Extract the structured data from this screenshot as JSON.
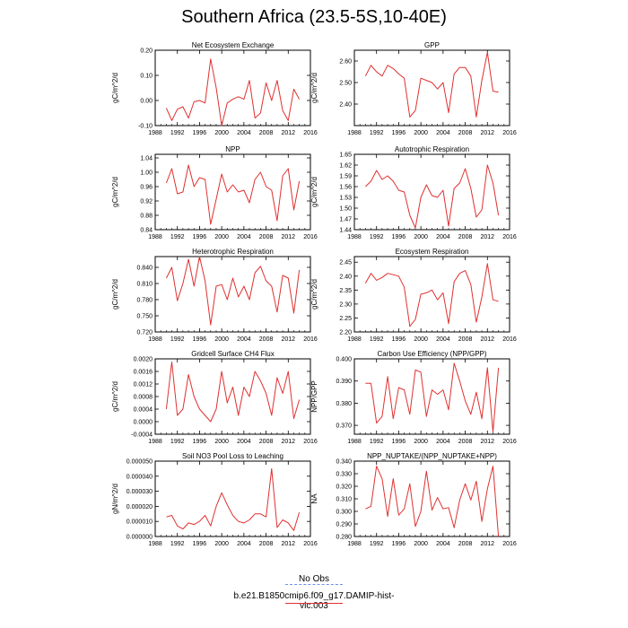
{
  "title": "Southern Africa (23.5-5S,10-40E)",
  "legend": [
    {
      "label": "No Obs",
      "color": "#6f8ff0",
      "style": "dashed"
    },
    {
      "label": "b.e21.B1850cmip6.f09_g17.DAMIP-hist-vlc.003",
      "color": "#e03030",
      "style": "solid"
    }
  ],
  "chart_data": [
    {
      "type": "line",
      "title": "Net Ecosystem Exchange",
      "ylabel": "gC/m^2/d",
      "xlim": [
        1988,
        2016
      ],
      "xticks": [
        1988,
        1992,
        1996,
        2000,
        2004,
        2008,
        2012,
        2016
      ],
      "ylim": [
        -0.1,
        0.2
      ],
      "yticks": [
        "-0.10",
        "0.00",
        "0.10",
        "0.20"
      ],
      "yticks_v": [
        -0.1,
        0,
        0.1,
        0.2
      ],
      "series": [
        {
          "color": "#e03030",
          "x": [
            1990,
            1991,
            1992,
            1993,
            1994,
            1995,
            1996,
            1997,
            1998,
            1999,
            2000,
            2001,
            2002,
            2003,
            2004,
            2005,
            2006,
            2007,
            2008,
            2009,
            2010,
            2011,
            2012,
            2013,
            2014
          ],
          "y": [
            -0.03,
            -0.08,
            -0.035,
            -0.025,
            -0.07,
            -0.005,
            0.0,
            -0.01,
            0.165,
            0.05,
            -0.1,
            -0.01,
            0.005,
            0.015,
            0.005,
            0.08,
            -0.07,
            -0.05,
            0.07,
            0.0,
            0.08,
            -0.04,
            -0.08,
            0.045,
            0.005
          ]
        }
      ]
    },
    {
      "type": "line",
      "title": "GPP",
      "ylabel": "gC/m^2/d",
      "xlim": [
        1988,
        2016
      ],
      "xticks": [
        1988,
        1992,
        1996,
        2000,
        2004,
        2008,
        2012,
        2016
      ],
      "ylim": [
        2.3,
        2.65
      ],
      "yticks": [
        "2.40",
        "2.50",
        "2.60"
      ],
      "yticks_v": [
        2.4,
        2.5,
        2.6
      ],
      "series": [
        {
          "color": "#e03030",
          "x": [
            1990,
            1991,
            1992,
            1993,
            1994,
            1995,
            1996,
            1997,
            1998,
            1999,
            2000,
            2001,
            2002,
            2003,
            2004,
            2005,
            2006,
            2007,
            2008,
            2009,
            2010,
            2011,
            2012,
            2013,
            2014
          ],
          "y": [
            2.53,
            2.58,
            2.55,
            2.53,
            2.58,
            2.565,
            2.54,
            2.52,
            2.34,
            2.37,
            2.52,
            2.51,
            2.5,
            2.47,
            2.5,
            2.36,
            2.54,
            2.57,
            2.57,
            2.53,
            2.34,
            2.51,
            2.64,
            2.46,
            2.455
          ]
        }
      ]
    },
    {
      "type": "line",
      "title": "NPP",
      "ylabel": "gC/m^2/d",
      "xlim": [
        1988,
        2016
      ],
      "xticks": [
        1988,
        1992,
        1996,
        2000,
        2004,
        2008,
        2012,
        2016
      ],
      "ylim": [
        0.84,
        1.05
      ],
      "yticks": [
        "0.84",
        "0.88",
        "0.92",
        "0.96",
        "1.00",
        "1.04"
      ],
      "yticks_v": [
        0.84,
        0.88,
        0.92,
        0.96,
        1.0,
        1.04
      ],
      "series": [
        {
          "color": "#e03030",
          "x": [
            1990,
            1991,
            1992,
            1993,
            1994,
            1995,
            1996,
            1997,
            1998,
            1999,
            2000,
            2001,
            2002,
            2003,
            2004,
            2005,
            2006,
            2007,
            2008,
            2009,
            2010,
            2011,
            2012,
            2013,
            2014
          ],
          "y": [
            0.97,
            1.01,
            0.94,
            0.945,
            1.02,
            0.96,
            0.985,
            0.98,
            0.855,
            0.925,
            0.995,
            0.945,
            0.965,
            0.945,
            0.95,
            0.915,
            0.98,
            1.0,
            0.96,
            0.95,
            0.865,
            0.99,
            1.01,
            0.895,
            0.975
          ]
        }
      ]
    },
    {
      "type": "line",
      "title": "Autotrophic Respiration",
      "ylabel": "gC/m^2/d",
      "xlim": [
        1988,
        2016
      ],
      "xticks": [
        1988,
        1992,
        1996,
        2000,
        2004,
        2008,
        2012,
        2016
      ],
      "ylim": [
        1.44,
        1.65
      ],
      "yticks": [
        "1.44",
        "1.47",
        "1.50",
        "1.53",
        "1.56",
        "1.59",
        "1.62",
        "1.65"
      ],
      "yticks_v": [
        1.44,
        1.47,
        1.5,
        1.53,
        1.56,
        1.59,
        1.62,
        1.65
      ],
      "series": [
        {
          "color": "#e03030",
          "x": [
            1990,
            1991,
            1992,
            1993,
            1994,
            1995,
            1996,
            1997,
            1998,
            1999,
            2000,
            2001,
            2002,
            2003,
            2004,
            2005,
            2006,
            2007,
            2008,
            2009,
            2010,
            2011,
            2012,
            2013,
            2014
          ],
          "y": [
            1.56,
            1.575,
            1.605,
            1.58,
            1.59,
            1.575,
            1.55,
            1.545,
            1.48,
            1.445,
            1.53,
            1.565,
            1.535,
            1.53,
            1.55,
            1.45,
            1.555,
            1.57,
            1.61,
            1.555,
            1.475,
            1.495,
            1.62,
            1.57,
            1.48
          ]
        }
      ]
    },
    {
      "type": "line",
      "title": "Heterotrophic Respiration",
      "ylabel": "gC/m^2/d",
      "xlim": [
        1988,
        2016
      ],
      "xticks": [
        1988,
        1992,
        1996,
        2000,
        2004,
        2008,
        2012,
        2016
      ],
      "ylim": [
        0.72,
        0.86
      ],
      "yticks": [
        "0.720",
        "0.750",
        "0.780",
        "0.810",
        "0.840"
      ],
      "yticks_v": [
        0.72,
        0.75,
        0.78,
        0.81,
        0.84
      ],
      "series": [
        {
          "color": "#e03030",
          "x": [
            1990,
            1991,
            1992,
            1993,
            1994,
            1995,
            1996,
            1997,
            1998,
            1999,
            2000,
            2001,
            2002,
            2003,
            2004,
            2005,
            2006,
            2007,
            2008,
            2009,
            2010,
            2011,
            2012,
            2013,
            2014
          ],
          "y": [
            0.82,
            0.84,
            0.778,
            0.81,
            0.855,
            0.805,
            0.86,
            0.815,
            0.733,
            0.805,
            0.808,
            0.78,
            0.82,
            0.785,
            0.805,
            0.78,
            0.83,
            0.842,
            0.815,
            0.805,
            0.757,
            0.825,
            0.82,
            0.755,
            0.835
          ]
        }
      ]
    },
    {
      "type": "line",
      "title": "Ecosystem Respiration",
      "ylabel": "gC/m^2/d",
      "xlim": [
        1988,
        2016
      ],
      "xticks": [
        1988,
        1992,
        1996,
        2000,
        2004,
        2008,
        2012,
        2016
      ],
      "ylim": [
        2.2,
        2.47
      ],
      "yticks": [
        "2.20",
        "2.25",
        "2.30",
        "2.35",
        "2.40",
        "2.45"
      ],
      "yticks_v": [
        2.2,
        2.25,
        2.3,
        2.35,
        2.4,
        2.45
      ],
      "series": [
        {
          "color": "#e03030",
          "x": [
            1990,
            1991,
            1992,
            1993,
            1994,
            1995,
            1996,
            1997,
            1998,
            1999,
            2000,
            2001,
            2002,
            2003,
            2004,
            2005,
            2006,
            2007,
            2008,
            2009,
            2010,
            2011,
            2012,
            2013,
            2014
          ],
          "y": [
            2.375,
            2.41,
            2.385,
            2.395,
            2.41,
            2.405,
            2.4,
            2.36,
            2.22,
            2.245,
            2.335,
            2.34,
            2.35,
            2.315,
            2.34,
            2.23,
            2.38,
            2.41,
            2.42,
            2.37,
            2.235,
            2.325,
            2.445,
            2.315,
            2.31
          ]
        }
      ]
    },
    {
      "type": "line",
      "title": "Gridcell Surface CH4 Flux",
      "ylabel": "gC/m^2/d",
      "xlim": [
        1988,
        2016
      ],
      "xticks": [
        1988,
        1992,
        1996,
        2000,
        2004,
        2008,
        2012,
        2016
      ],
      "ylim": [
        -0.0004,
        0.002
      ],
      "yticks": [
        "-0.0004",
        "0.0000",
        "0.0004",
        "0.0008",
        "0.0012",
        "0.0016",
        "0.0020"
      ],
      "yticks_v": [
        -0.0004,
        0.0,
        0.0004,
        0.0008,
        0.0012,
        0.0016,
        0.002
      ],
      "series": [
        {
          "color": "#e03030",
          "x": [
            1990,
            1991,
            1992,
            1993,
            1994,
            1995,
            1996,
            1997,
            1998,
            1999,
            2000,
            2001,
            2002,
            2003,
            2004,
            2005,
            2006,
            2007,
            2008,
            2009,
            2010,
            2011,
            2012,
            2013,
            2014
          ],
          "y": [
            0.0004,
            0.0019,
            0.0002,
            0.0004,
            0.0015,
            0.0008,
            0.0004,
            0.0002,
            0.0,
            0.0004,
            0.0016,
            0.0006,
            0.0011,
            0.0002,
            0.0011,
            0.0008,
            0.0016,
            0.0013,
            0.0009,
            0.0002,
            0.0014,
            0.0009,
            0.0016,
            0.0001,
            0.0007
          ]
        }
      ]
    },
    {
      "type": "line",
      "title": "Carbon Use Efficiency (NPP/GPP)",
      "ylabel": "NPP/GPP",
      "xlim": [
        1988,
        2016
      ],
      "xticks": [
        1988,
        1992,
        1996,
        2000,
        2004,
        2008,
        2012,
        2016
      ],
      "ylim": [
        0.366,
        0.4
      ],
      "yticks": [
        "0.370",
        "0.380",
        "0.390",
        "0.400"
      ],
      "yticks_v": [
        0.37,
        0.38,
        0.39,
        0.4
      ],
      "series": [
        {
          "color": "#e03030",
          "x": [
            1990,
            1991,
            1992,
            1993,
            1994,
            1995,
            1996,
            1997,
            1998,
            1999,
            2000,
            2001,
            2002,
            2003,
            2004,
            2005,
            2006,
            2007,
            2008,
            2009,
            2010,
            2011,
            2012,
            2013,
            2014
          ],
          "y": [
            0.389,
            0.389,
            0.371,
            0.374,
            0.392,
            0.373,
            0.387,
            0.386,
            0.375,
            0.395,
            0.394,
            0.374,
            0.386,
            0.384,
            0.386,
            0.377,
            0.398,
            0.39,
            0.381,
            0.375,
            0.385,
            0.373,
            0.396,
            0.367,
            0.396
          ]
        }
      ]
    },
    {
      "type": "line",
      "title": "Soil NO3 Pool Loss to Leaching",
      "ylabel": "gN/m^2/d",
      "xlim": [
        1988,
        2016
      ],
      "xticks": [
        1988,
        1992,
        1996,
        2000,
        2004,
        2008,
        2012,
        2016
      ],
      "ylim": [
        0,
        5e-05
      ],
      "yticks": [
        "0.000000",
        "0.000010",
        "0.000020",
        "0.000030",
        "0.000040",
        "0.000050"
      ],
      "yticks_v": [
        0,
        1e-05,
        2e-05,
        3e-05,
        4e-05,
        5e-05
      ],
      "series": [
        {
          "color": "#e03030",
          "x": [
            1990,
            1991,
            1992,
            1993,
            1994,
            1995,
            1996,
            1997,
            1998,
            1999,
            2000,
            2001,
            2002,
            2003,
            2004,
            2005,
            2006,
            2007,
            2008,
            2009,
            2010,
            2011,
            2012,
            2013,
            2014
          ],
          "y": [
            1.3e-05,
            1.4e-05,
            7e-06,
            5e-06,
            9e-06,
            8e-06,
            1e-05,
            1.4e-05,
            7e-06,
            2e-05,
            2.9e-05,
            2.1e-05,
            1.4e-05,
            1e-05,
            9e-06,
            1.1e-05,
            1.5e-05,
            1.5e-05,
            1.3e-05,
            4.5e-05,
            6e-06,
            1.1e-05,
            9e-06,
            4e-06,
            1.6e-05
          ]
        }
      ]
    },
    {
      "type": "line",
      "title": "NPP_NUPTAKE/(NPP_NUPTAKE+NPP)",
      "ylabel": "NA",
      "xlim": [
        1988,
        2016
      ],
      "xticks": [
        1988,
        1992,
        1996,
        2000,
        2004,
        2008,
        2012,
        2016
      ],
      "ylim": [
        0.28,
        0.34
      ],
      "yticks": [
        "0.280",
        "0.290",
        "0.300",
        "0.310",
        "0.320",
        "0.330",
        "0.340"
      ],
      "yticks_v": [
        0.28,
        0.29,
        0.3,
        0.31,
        0.32,
        0.33,
        0.34
      ],
      "series": [
        {
          "color": "#e03030",
          "x": [
            1990,
            1991,
            1992,
            1993,
            1994,
            1995,
            1996,
            1997,
            1998,
            1999,
            2000,
            2001,
            2002,
            2003,
            2004,
            2005,
            2006,
            2007,
            2008,
            2009,
            2010,
            2011,
            2012,
            2013,
            2014
          ],
          "y": [
            0.302,
            0.304,
            0.336,
            0.326,
            0.296,
            0.326,
            0.297,
            0.302,
            0.322,
            0.288,
            0.3,
            0.332,
            0.301,
            0.311,
            0.302,
            0.303,
            0.287,
            0.309,
            0.322,
            0.309,
            0.324,
            0.292,
            0.318,
            0.336,
            0.28
          ]
        }
      ]
    }
  ]
}
